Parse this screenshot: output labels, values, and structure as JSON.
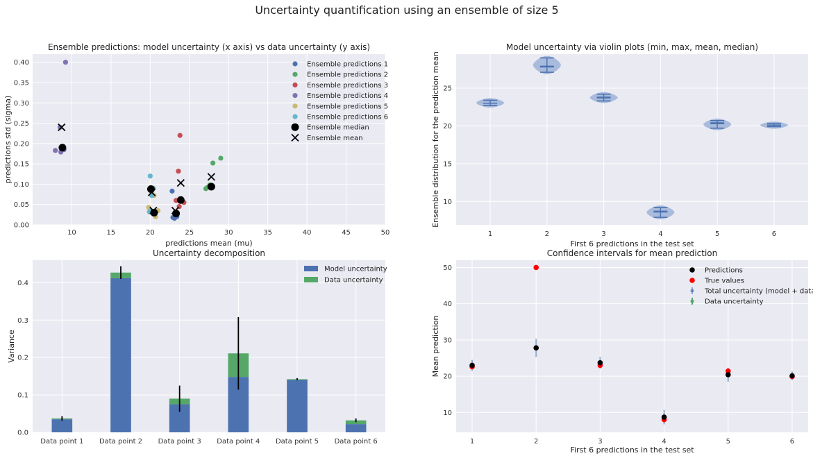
{
  "figure": {
    "title": "Uncertainty quantification using an ensemble of size 5"
  },
  "colors": {
    "axes_bg": "#eaeaf2",
    "grid": "#ffffff",
    "blue": "#4c72b0",
    "green": "#55a868",
    "red": "#c44e52",
    "purple": "#8172b2",
    "yellow": "#ccb974",
    "cyan": "#64b5cd",
    "violin": "#a9bbdc",
    "true_values": "#ff0000",
    "black": "#000000"
  },
  "chart_data": [
    {
      "id": "scatter",
      "type": "scatter",
      "title": "Ensemble predictions: model uncertainty (x axis) vs data uncertainty (y axis)",
      "xlabel": "predictions mean (mu)",
      "ylabel": "predictions std (sigma)",
      "xlim": [
        5,
        50
      ],
      "ylim": [
        0,
        0.42
      ],
      "xticks": [
        10,
        15,
        20,
        25,
        30,
        35,
        40,
        45,
        50
      ],
      "yticks": [
        0.0,
        0.05,
        0.1,
        0.15,
        0.2,
        0.25,
        0.3,
        0.35,
        0.4
      ],
      "ytick_labels": [
        "0.00",
        "0.05",
        "0.10",
        "0.15",
        "0.20",
        "0.25",
        "0.30",
        "0.35",
        "0.40"
      ],
      "legend_position": "top-right",
      "series": [
        {
          "name": "Ensemble predictions 1",
          "color": "blue",
          "points": [
            [
              22.8,
              0.083
            ],
            [
              22.9,
              0.018
            ],
            [
              23.2,
              0.025
            ],
            [
              23.1,
              0.016
            ],
            [
              23.4,
              0.02
            ]
          ]
        },
        {
          "name": "Ensemble predictions 2",
          "color": "green",
          "points": [
            [
              27.1,
              0.089
            ],
            [
              27.3,
              0.092
            ],
            [
              28.0,
              0.152
            ],
            [
              29.0,
              0.164
            ],
            [
              27.6,
              0.098
            ]
          ]
        },
        {
          "name": "Ensemble predictions 3",
          "color": "red",
          "points": [
            [
              23.8,
              0.22
            ],
            [
              23.6,
              0.132
            ],
            [
              23.3,
              0.06
            ],
            [
              23.7,
              0.045
            ],
            [
              24.3,
              0.055
            ]
          ]
        },
        {
          "name": "Ensemble predictions 4",
          "color": "purple",
          "points": [
            [
              9.2,
              0.4
            ],
            [
              7.9,
              0.183
            ],
            [
              8.6,
              0.179
            ],
            [
              8.5,
              0.24
            ],
            [
              9.0,
              0.185
            ]
          ]
        },
        {
          "name": "Ensemble predictions 5",
          "color": "yellow",
          "points": [
            [
              19.8,
              0.043
            ],
            [
              20.5,
              0.072
            ],
            [
              20.7,
              0.02
            ],
            [
              21.0,
              0.035
            ],
            [
              20.2,
              0.08
            ]
          ]
        },
        {
          "name": "Ensemble predictions 6",
          "color": "cyan",
          "points": [
            [
              20.0,
              0.12
            ],
            [
              20.2,
              0.072
            ],
            [
              20.4,
              0.09
            ],
            [
              20.1,
              0.035
            ],
            [
              19.9,
              0.032
            ]
          ]
        }
      ],
      "median": {
        "name": "Ensemble median",
        "points": [
          [
            20.1,
            0.088
          ],
          [
            20.5,
            0.03
          ],
          [
            23.9,
            0.061
          ],
          [
            8.8,
            0.19
          ],
          [
            27.8,
            0.094
          ],
          [
            23.3,
            0.028
          ]
        ]
      },
      "mean": {
        "name": "Ensemble mean",
        "points": [
          [
            20.2,
            0.08
          ],
          [
            20.4,
            0.035
          ],
          [
            23.9,
            0.103
          ],
          [
            8.7,
            0.24
          ],
          [
            27.8,
            0.118
          ],
          [
            23.2,
            0.035
          ]
        ]
      }
    },
    {
      "id": "violin",
      "type": "violin",
      "title": "Model uncertainty via violin plots (min, max, mean, median)",
      "xlabel": "First 6 predictions in the test set",
      "ylabel": "Ensemble distribution for the prediction mean",
      "xlim": [
        0.4,
        6.6
      ],
      "ylim": [
        6.9,
        29.5
      ],
      "xticks": [
        1,
        2,
        3,
        4,
        5,
        6
      ],
      "yticks": [
        10,
        15,
        20,
        25
      ],
      "violins": [
        {
          "x": 1,
          "min": 22.7,
          "max": 23.4,
          "mean": 23.0,
          "median": 23.0
        },
        {
          "x": 2,
          "min": 27.1,
          "max": 29.0,
          "mean": 27.9,
          "median": 27.8
        },
        {
          "x": 3,
          "min": 23.3,
          "max": 24.2,
          "mean": 23.8,
          "median": 23.7
        },
        {
          "x": 4,
          "min": 7.9,
          "max": 9.2,
          "mean": 8.6,
          "median": 8.7
        },
        {
          "x": 5,
          "min": 19.7,
          "max": 20.7,
          "mean": 20.3,
          "median": 20.4
        },
        {
          "x": 6,
          "min": 19.9,
          "max": 20.3,
          "mean": 20.1,
          "median": 20.1
        }
      ]
    },
    {
      "id": "decomposition",
      "type": "bar",
      "title": "Uncertainty decomposition",
      "ylabel": "Variance",
      "categories": [
        "Data point 1",
        "Data point 2",
        "Data point 3",
        "Data point 4",
        "Data point 5",
        "Data point 6"
      ],
      "ylim": [
        0,
        0.46
      ],
      "yticks": [
        0.0,
        0.1,
        0.2,
        0.3,
        0.4
      ],
      "ytick_labels": [
        "0.0",
        "0.1",
        "0.2",
        "0.3",
        "0.4"
      ],
      "legend_position": "top-right",
      "series": [
        {
          "name": "Model uncertainty",
          "color": "blue",
          "values": [
            0.035,
            0.412,
            0.075,
            0.148,
            0.14,
            0.022
          ]
        },
        {
          "name": "Data uncertainty",
          "color": "green",
          "values": [
            0.002,
            0.015,
            0.015,
            0.063,
            0.002,
            0.01
          ]
        }
      ],
      "errors": [
        0.006,
        0.017,
        0.035,
        0.097,
        0.003,
        0.005
      ]
    },
    {
      "id": "intervals",
      "type": "errorbar",
      "title": "Confidence intervals for mean prediction",
      "xlabel": "First 6 predictions in the test set",
      "ylabel": "Mean prediction",
      "xlim": [
        0.75,
        6.25
      ],
      "ylim": [
        4.5,
        52
      ],
      "xticks": [
        1,
        2,
        3,
        4,
        5,
        6
      ],
      "yticks": [
        10,
        20,
        30,
        40,
        50
      ],
      "legend_position": "top-right",
      "legend": [
        "Predictions",
        "True values",
        "Total uncertainty (model + data)",
        "Data uncertainty"
      ],
      "x": [
        1,
        2,
        3,
        4,
        5,
        6
      ],
      "predictions": [
        23.0,
        27.8,
        23.7,
        8.7,
        20.4,
        20.1
      ],
      "true_values": [
        22.6,
        50.0,
        23.0,
        8.0,
        21.4,
        19.9
      ],
      "total_err": [
        1.5,
        2.5,
        1.6,
        2.0,
        1.9,
        1.2
      ],
      "data_err": [
        0.35,
        0.45,
        0.4,
        0.6,
        0.35,
        0.25
      ]
    }
  ]
}
